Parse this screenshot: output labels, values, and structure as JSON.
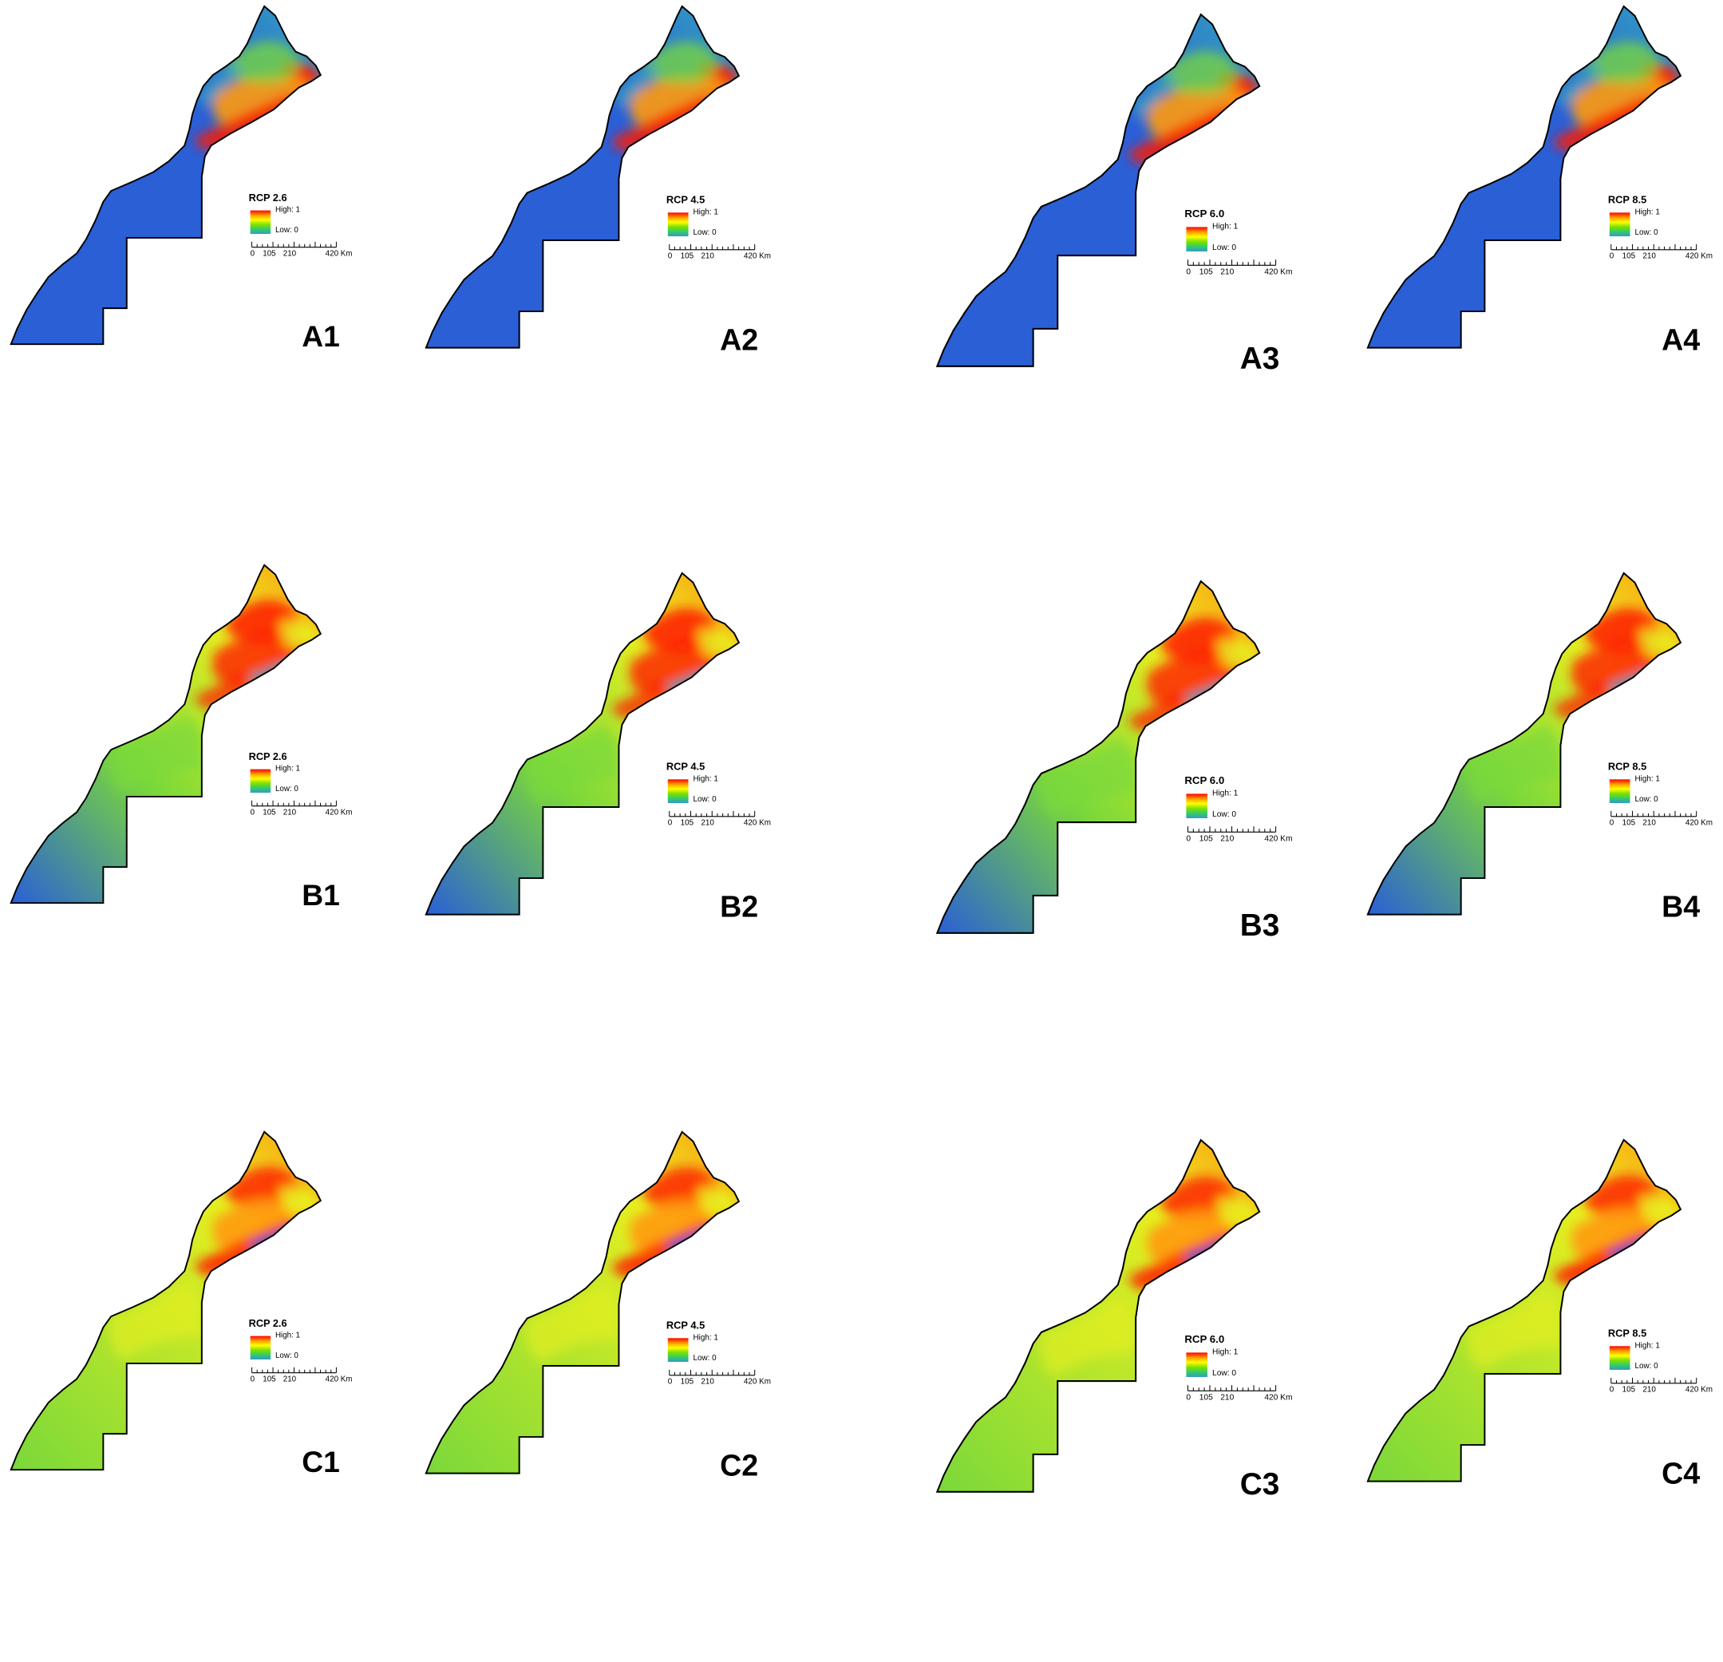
{
  "legend": {
    "high_label": "High: 1",
    "low_label": "Low: 0",
    "scale_ticks": [
      "0",
      "105",
      "210"
    ],
    "scale_end": "420 Km",
    "ramp_colors": [
      "#ff0000",
      "#ff9900",
      "#ffff00",
      "#7fe000",
      "#33cc66",
      "#3399cc"
    ]
  },
  "colors": {
    "low": "#2a5fd6",
    "mid_low": "#32a0c0",
    "mid": "#7ad83a",
    "mid_high": "#e8f020",
    "high_orange": "#ff9a10",
    "high": "#ff1a00",
    "outline": "#000000"
  },
  "rows": [
    {
      "row": "A",
      "panels": [
        {
          "label": "A1",
          "rcp": "RCP 2.6"
        },
        {
          "label": "A2",
          "rcp": "RCP 4.5"
        },
        {
          "label": "A3",
          "rcp": "RCP 6.0"
        },
        {
          "label": "A4",
          "rcp": "RCP 8.5"
        }
      ]
    },
    {
      "row": "B",
      "panels": [
        {
          "label": "B1",
          "rcp": "RCP 2.6"
        },
        {
          "label": "B2",
          "rcp": "RCP 4.5"
        },
        {
          "label": "B3",
          "rcp": "RCP 6.0"
        },
        {
          "label": "B4",
          "rcp": "RCP 8.5"
        }
      ]
    },
    {
      "row": "C",
      "panels": [
        {
          "label": "C1",
          "rcp": "RCP 2.6"
        },
        {
          "label": "C2",
          "rcp": "RCP 4.5"
        },
        {
          "label": "C3",
          "rcp": "RCP 6.0"
        },
        {
          "label": "C4",
          "rcp": "RCP 8.5"
        }
      ]
    }
  ]
}
